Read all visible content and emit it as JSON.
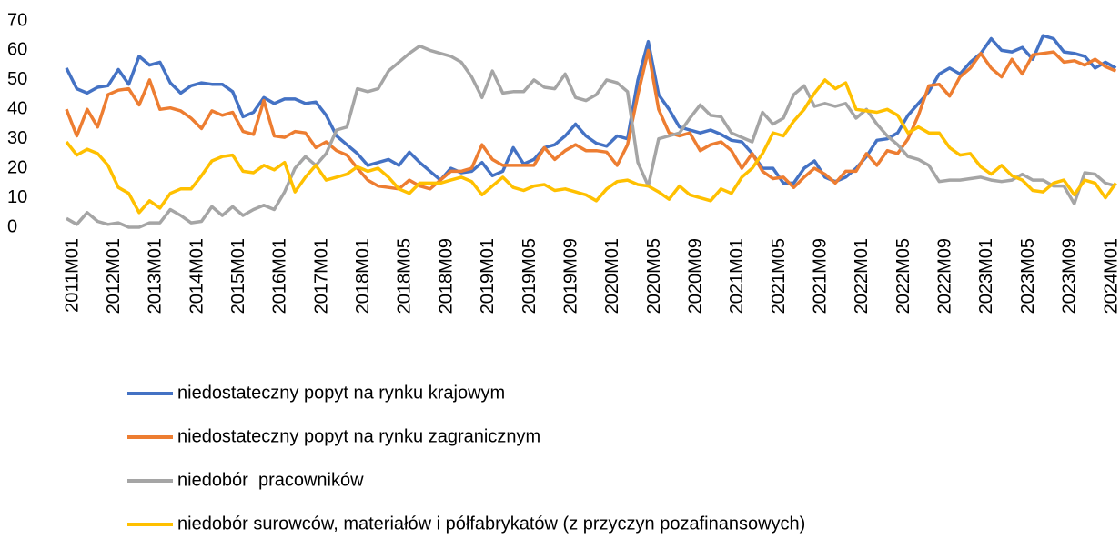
{
  "chart_data": {
    "type": "line",
    "categories": [
      "2011M01",
      null,
      null,
      null,
      "2012M01",
      null,
      null,
      null,
      "2013M01",
      null,
      null,
      null,
      "2014M01",
      null,
      null,
      null,
      "2015M01",
      null,
      null,
      null,
      "2016M01",
      null,
      null,
      null,
      "2017M01",
      null,
      null,
      null,
      "2018M01",
      null,
      null,
      null,
      "2018M05",
      null,
      null,
      null,
      "2018M09",
      null,
      null,
      null,
      "2019M01",
      null,
      null,
      null,
      "2019M05",
      null,
      null,
      null,
      "2019M09",
      null,
      null,
      null,
      "2020M01",
      null,
      null,
      null,
      "2020M05",
      null,
      null,
      null,
      "2020M09",
      null,
      null,
      null,
      "2021M01",
      null,
      null,
      null,
      "2021M05",
      null,
      null,
      null,
      "2021M09",
      null,
      null,
      null,
      "2022M01",
      null,
      null,
      null,
      "2022M05",
      null,
      null,
      null,
      "2022M09",
      null,
      null,
      null,
      "2023M01",
      null,
      null,
      null,
      "2023M05",
      null,
      null,
      null,
      "2023M09",
      null,
      null,
      null,
      "2024M01",
      null
    ],
    "series": [
      {
        "name": "niedostateczny popyt na rynku krajowym",
        "color": "#4472c4",
        "values": [
          54,
          47,
          45.5,
          47.5,
          48,
          53.5,
          48.5,
          58,
          55,
          56,
          49,
          45.5,
          48,
          49,
          48.5,
          48.5,
          46,
          37.5,
          39,
          44,
          42,
          43.5,
          43.5,
          42,
          42.5,
          38,
          31,
          28,
          25,
          21,
          22,
          23,
          21,
          25.5,
          22,
          19,
          16,
          20,
          18.5,
          19,
          22,
          17.5,
          19,
          27,
          21.5,
          23,
          27,
          28,
          31,
          35,
          31,
          28.5,
          27.5,
          31,
          30,
          50,
          63,
          45,
          40,
          34,
          33,
          32,
          33,
          31.5,
          29.5,
          29,
          25,
          20,
          20,
          15,
          15,
          20,
          22.5,
          17,
          15.5,
          17,
          20,
          24,
          29.5,
          30,
          32,
          38,
          42,
          46,
          52,
          54,
          52,
          56,
          59,
          64,
          60,
          59.5,
          61,
          57,
          65,
          64,
          59.5,
          59,
          58,
          54,
          56,
          54
        ]
      },
      {
        "name": "niedostateczny popyt na rynku zagranicznym",
        "color": "#ed7d31",
        "values": [
          40,
          31,
          40,
          34,
          45,
          46.5,
          47,
          41.5,
          50,
          40,
          40.5,
          39.5,
          37,
          33.5,
          39.5,
          38,
          39,
          32.5,
          31.5,
          43,
          31,
          30.5,
          32.5,
          32,
          27,
          29,
          26,
          24.5,
          20,
          16,
          14,
          13.5,
          13,
          16,
          14,
          13,
          16,
          19,
          19,
          20,
          28,
          23,
          21,
          21,
          21,
          21,
          27,
          23,
          26,
          28,
          26,
          26,
          25.5,
          21,
          28,
          45,
          60,
          40,
          32,
          31,
          32,
          26,
          28,
          29,
          26,
          20,
          25,
          19,
          16.5,
          17,
          13.5,
          17,
          20,
          18,
          15,
          19,
          19,
          25,
          21,
          26,
          25,
          30,
          38,
          48,
          48.5,
          44.5,
          51,
          54,
          59,
          54,
          51,
          57,
          52,
          58.5,
          59,
          59.5,
          56,
          56.5,
          55,
          57,
          54.5,
          53
        ]
      },
      {
        "name": "niedobór  pracowników",
        "color": "#a5a5a5",
        "values": [
          3,
          1,
          5,
          2,
          1,
          1.5,
          0,
          0,
          1.5,
          1.5,
          6,
          4,
          1.5,
          2,
          7,
          4,
          7,
          4,
          6,
          7.5,
          6,
          12,
          20,
          24,
          21,
          25,
          33,
          34,
          47,
          46,
          47,
          53,
          56,
          59,
          61.5,
          60,
          59,
          58,
          56,
          51,
          44,
          53,
          45.5,
          46,
          46,
          50,
          47.5,
          47,
          52,
          44,
          43,
          45,
          50,
          49,
          46,
          22,
          14,
          30,
          31,
          32,
          37,
          41.5,
          38,
          37.5,
          32,
          30.5,
          29,
          39,
          35,
          37,
          45,
          48,
          41,
          42,
          41,
          42,
          37,
          40,
          35,
          31,
          28,
          24,
          23,
          21,
          15.5,
          16,
          16,
          16.5,
          17,
          16,
          15.5,
          16,
          18,
          16,
          16,
          14,
          14,
          8,
          18.5,
          18,
          15,
          14
        ]
      },
      {
        "name": "niedobór surowców, materiałów i półfabrykatów (z przyczyn pozafinansowych)",
        "color": "#ffc000",
        "values": [
          29,
          24.5,
          26.5,
          25,
          21,
          13.5,
          11.5,
          5,
          9,
          6.5,
          11.5,
          13,
          13,
          17.5,
          22.5,
          24,
          24.5,
          19,
          18.5,
          21,
          19.5,
          22,
          12,
          17,
          21,
          16,
          17,
          18,
          20.5,
          19,
          20,
          17,
          13,
          11.5,
          15,
          15,
          15,
          16,
          17,
          15.5,
          11,
          14,
          17,
          13.5,
          12.5,
          14,
          14.5,
          12.5,
          13,
          12,
          11,
          9,
          13,
          15.5,
          16,
          14.5,
          14,
          12,
          9.5,
          14,
          11,
          10,
          9,
          13,
          11.5,
          17,
          20,
          25,
          32,
          31,
          36,
          40,
          45.5,
          50,
          47,
          49,
          40,
          39.5,
          39,
          40,
          38,
          32,
          34,
          32,
          32,
          27,
          24.5,
          25,
          20.5,
          18,
          21,
          17.5,
          16,
          12.5,
          12,
          15,
          16,
          11,
          16,
          15,
          10,
          15
        ]
      }
    ],
    "ylim": [
      0,
      70
    ],
    "yticks": [
      0,
      10,
      20,
      30,
      40,
      50,
      60,
      70
    ]
  }
}
